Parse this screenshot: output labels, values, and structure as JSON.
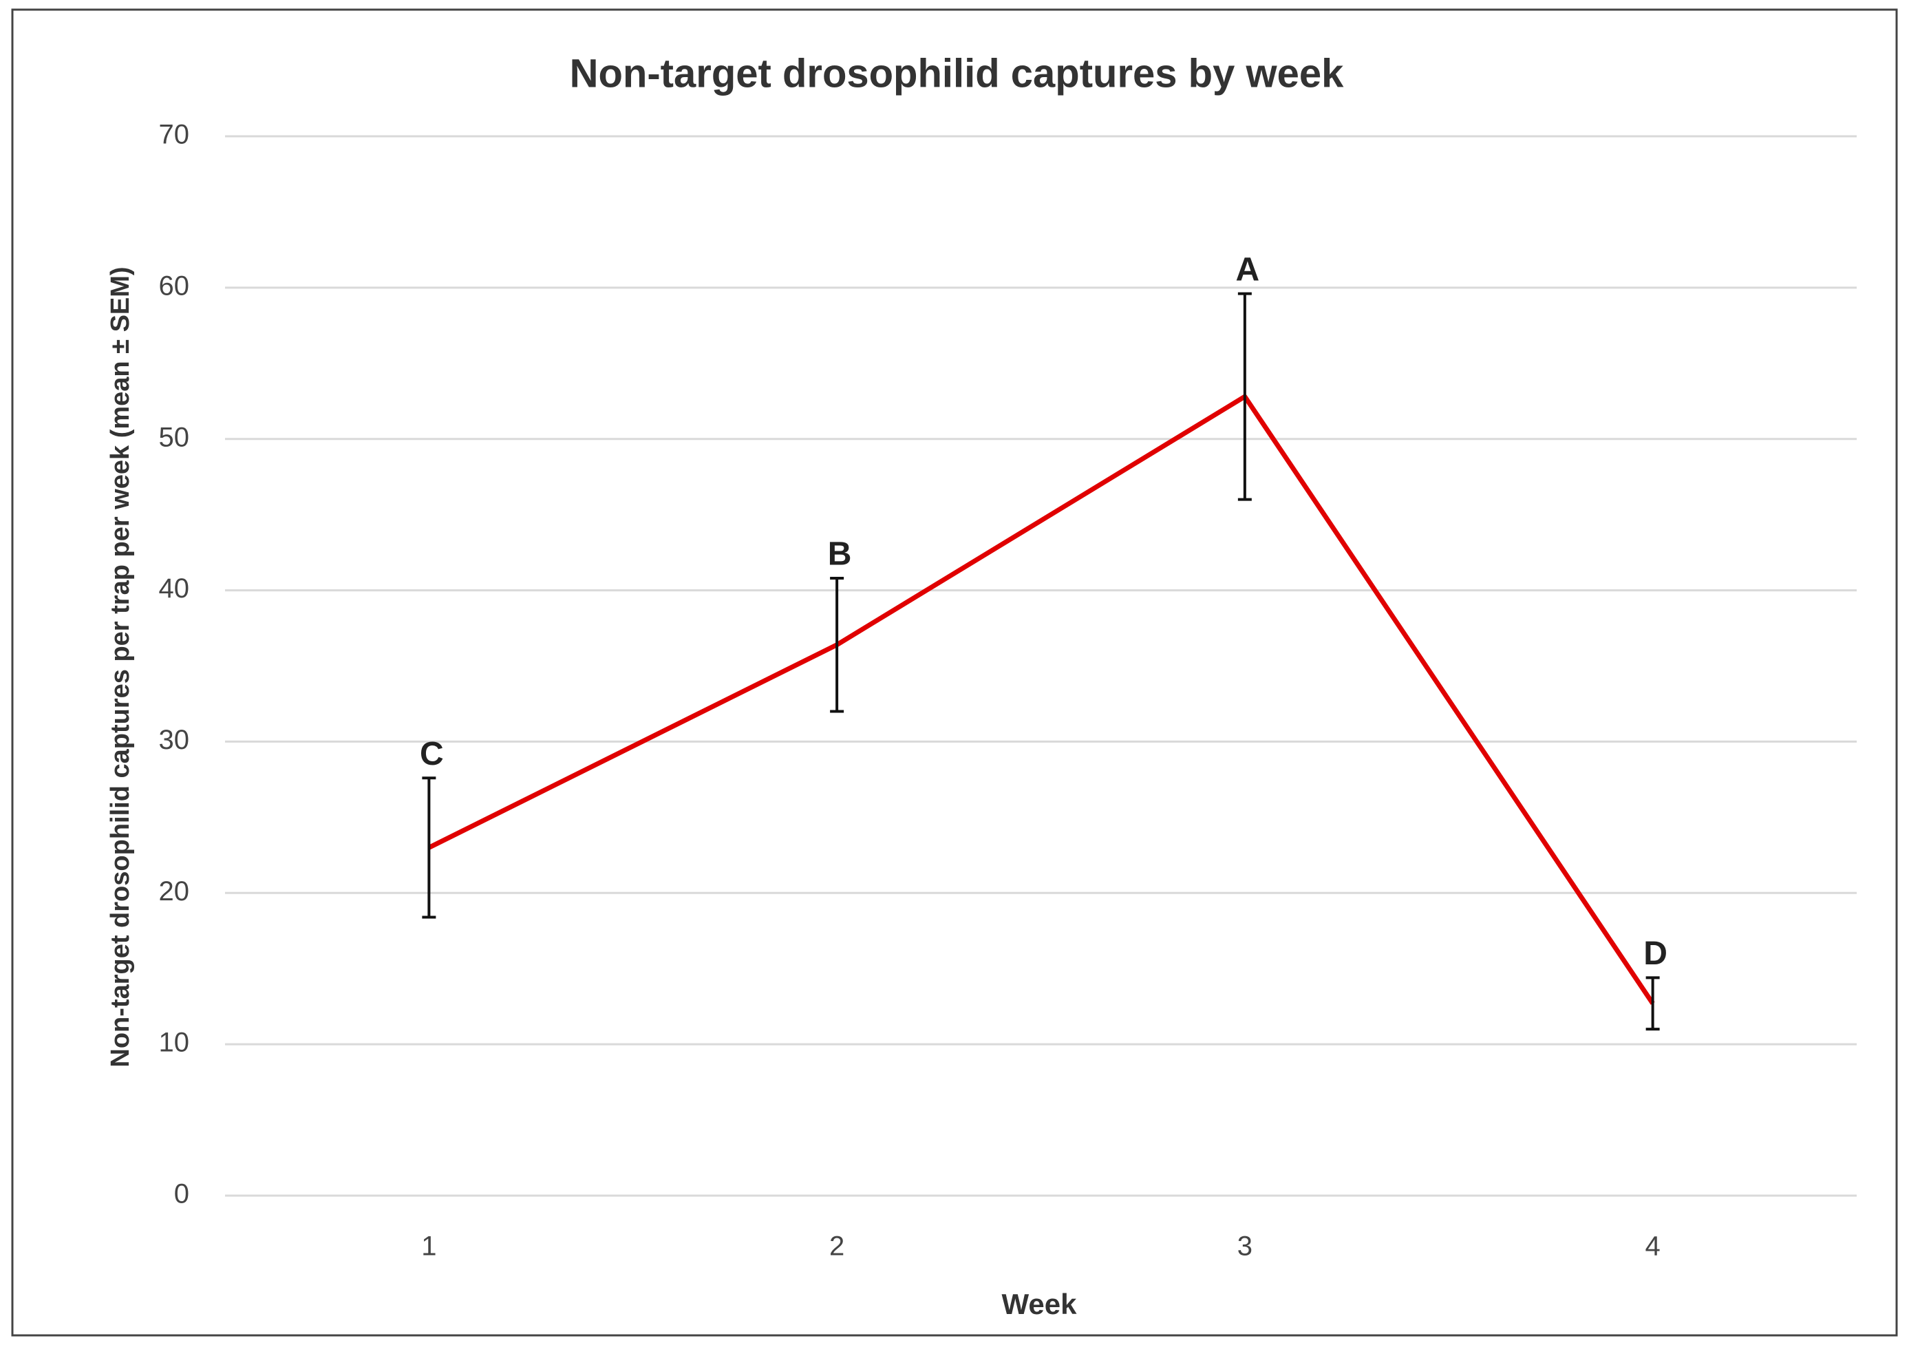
{
  "chart_data": {
    "type": "line",
    "title": "Non-target drosophilid  captures by week",
    "x_label": "Week",
    "y_label": "Non-target drosophilid captures per trap per week (mean ± SEM)",
    "categories": [
      "1",
      "2",
      "3",
      "4"
    ],
    "series": [
      {
        "color": "#e00000",
        "values": [
          23,
          36.4,
          52.8,
          12.7
        ],
        "errors": [
          4.6,
          4.4,
          6.8,
          1.7
        ],
        "annotations": [
          "C",
          "B",
          "A",
          "D"
        ]
      }
    ],
    "ylim": [
      0,
      70
    ],
    "yticks": [
      0,
      10,
      20,
      30,
      40,
      50,
      60,
      70
    ],
    "grid": true
  }
}
